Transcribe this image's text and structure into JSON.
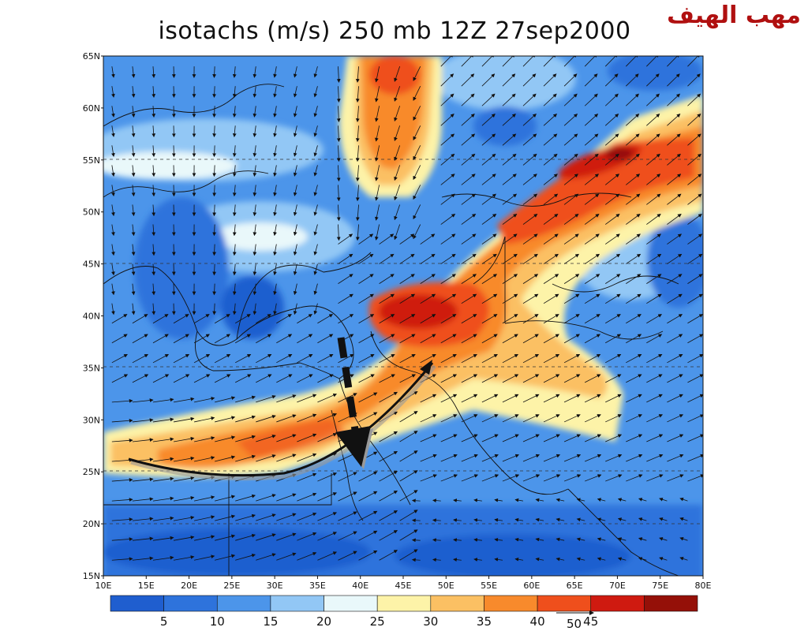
{
  "title": "isotachs (m/s) 250 mb 12Z 27sep2000",
  "watermark": "مهب الهيف",
  "lat_labels": [
    "65N",
    "60N",
    "55N",
    "50N",
    "45N",
    "40N",
    "35N",
    "30N",
    "25N",
    "20N",
    "15N"
  ],
  "lon_labels": [
    "10E",
    "15E",
    "20E",
    "25E",
    "30E",
    "35E",
    "40E",
    "45E",
    "50E",
    "55E",
    "60E",
    "65E",
    "70E",
    "75E",
    "80E"
  ],
  "colorbar": {
    "ticks": [
      "5",
      "10",
      "15",
      "20",
      "25",
      "30",
      "35",
      "40",
      "45"
    ],
    "colors": [
      "#1f5ecf",
      "#2e73dc",
      "#4c95ea",
      "#92c7f5",
      "#e9f8fa",
      "#fdf3a8",
      "#fbc063",
      "#f88a2c",
      "#ef4f1c",
      "#cf1a10",
      "#951008"
    ]
  },
  "reference_vector": "50",
  "chart_data": {
    "type": "heatmap",
    "title": "isotachs (m/s) 250 mb 12Z 27sep2000",
    "x": [
      10,
      15,
      20,
      25,
      30,
      35,
      40,
      45,
      50,
      55,
      60,
      65,
      70,
      75,
      80
    ],
    "y": [
      15,
      20,
      25,
      30,
      35,
      40,
      45,
      50,
      55,
      60,
      65
    ],
    "xlim": [
      10,
      80
    ],
    "ylim": [
      15,
      65
    ],
    "levels": [
      5,
      10,
      15,
      20,
      25,
      30,
      35,
      40,
      45
    ],
    "jet_axis": [
      [
        12,
        26
      ],
      [
        25,
        24.5
      ],
      [
        33,
        25
      ],
      [
        40,
        28
      ],
      [
        46,
        35
      ]
    ],
    "jet_max_points": [
      [
        50,
        40
      ],
      [
        70,
        55
      ],
      [
        44,
        62
      ]
    ]
  }
}
